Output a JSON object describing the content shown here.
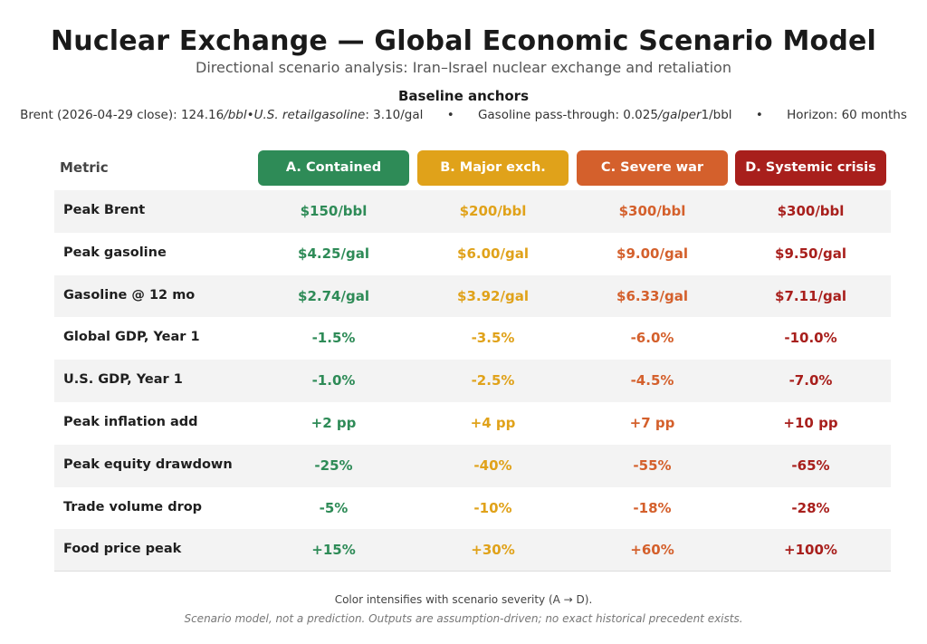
{
  "header": {
    "title": "Nuclear Exchange — Global Economic Scenario Model",
    "subtitle": "Directional scenario analysis: Iran–Israel nuclear exchange and retaliation"
  },
  "baseline": {
    "title": "Baseline anchors",
    "brent_prefix": "Brent (2026-04-29 close): 124.16",
    "brent_italic": "/bbl•U.S. retailgasoline",
    "gasoline_value": ": 3.10/gal",
    "separator": "•",
    "passthrough_prefix": "Gasoline pass-through: 0.025",
    "passthrough_italic": "/galper",
    "passthrough_suffix": "1/bbl",
    "horizon": "Horizon: 60 months"
  },
  "table": {
    "metric_header": "Metric",
    "scenarios": [
      {
        "label": "A. Contained",
        "color": "#2e8b57"
      },
      {
        "label": "B. Major exch.",
        "color": "#e0a21a"
      },
      {
        "label": "C. Severe war",
        "color": "#d4602c"
      },
      {
        "label": "D. Systemic crisis",
        "color": "#a81f1c"
      }
    ],
    "rows": [
      {
        "metric": "Peak Brent",
        "values": [
          "$150/bbl",
          "$200/bbl",
          "$300/bbl",
          "$300/bbl"
        ]
      },
      {
        "metric": "Peak gasoline",
        "values": [
          "$4.25/gal",
          "$6.00/gal",
          "$9.00/gal",
          "$9.50/gal"
        ]
      },
      {
        "metric": "Gasoline @ 12 mo",
        "values": [
          "$2.74/gal",
          "$3.92/gal",
          "$6.33/gal",
          "$7.11/gal"
        ]
      },
      {
        "metric": "Global GDP, Year 1",
        "values": [
          "-1.5%",
          "-3.5%",
          "-6.0%",
          "-10.0%"
        ]
      },
      {
        "metric": "U.S. GDP, Year 1",
        "values": [
          "-1.0%",
          "-2.5%",
          "-4.5%",
          "-7.0%"
        ]
      },
      {
        "metric": "Peak inflation add",
        "values": [
          "+2 pp",
          "+4 pp",
          "+7 pp",
          "+10 pp"
        ]
      },
      {
        "metric": "Peak equity drawdown",
        "values": [
          "-25%",
          "-40%",
          "-55%",
          "-65%"
        ]
      },
      {
        "metric": "Trade volume drop",
        "values": [
          "-5%",
          "-10%",
          "-18%",
          "-28%"
        ]
      },
      {
        "metric": "Food price peak",
        "values": [
          "+15%",
          "+30%",
          "+60%",
          "+100%"
        ]
      }
    ]
  },
  "footer": {
    "note": "Color intensifies with scenario severity (A → D).",
    "disclaimer": "Scenario model, not a prediction. Outputs are assumption-driven; no exact historical precedent exists."
  }
}
